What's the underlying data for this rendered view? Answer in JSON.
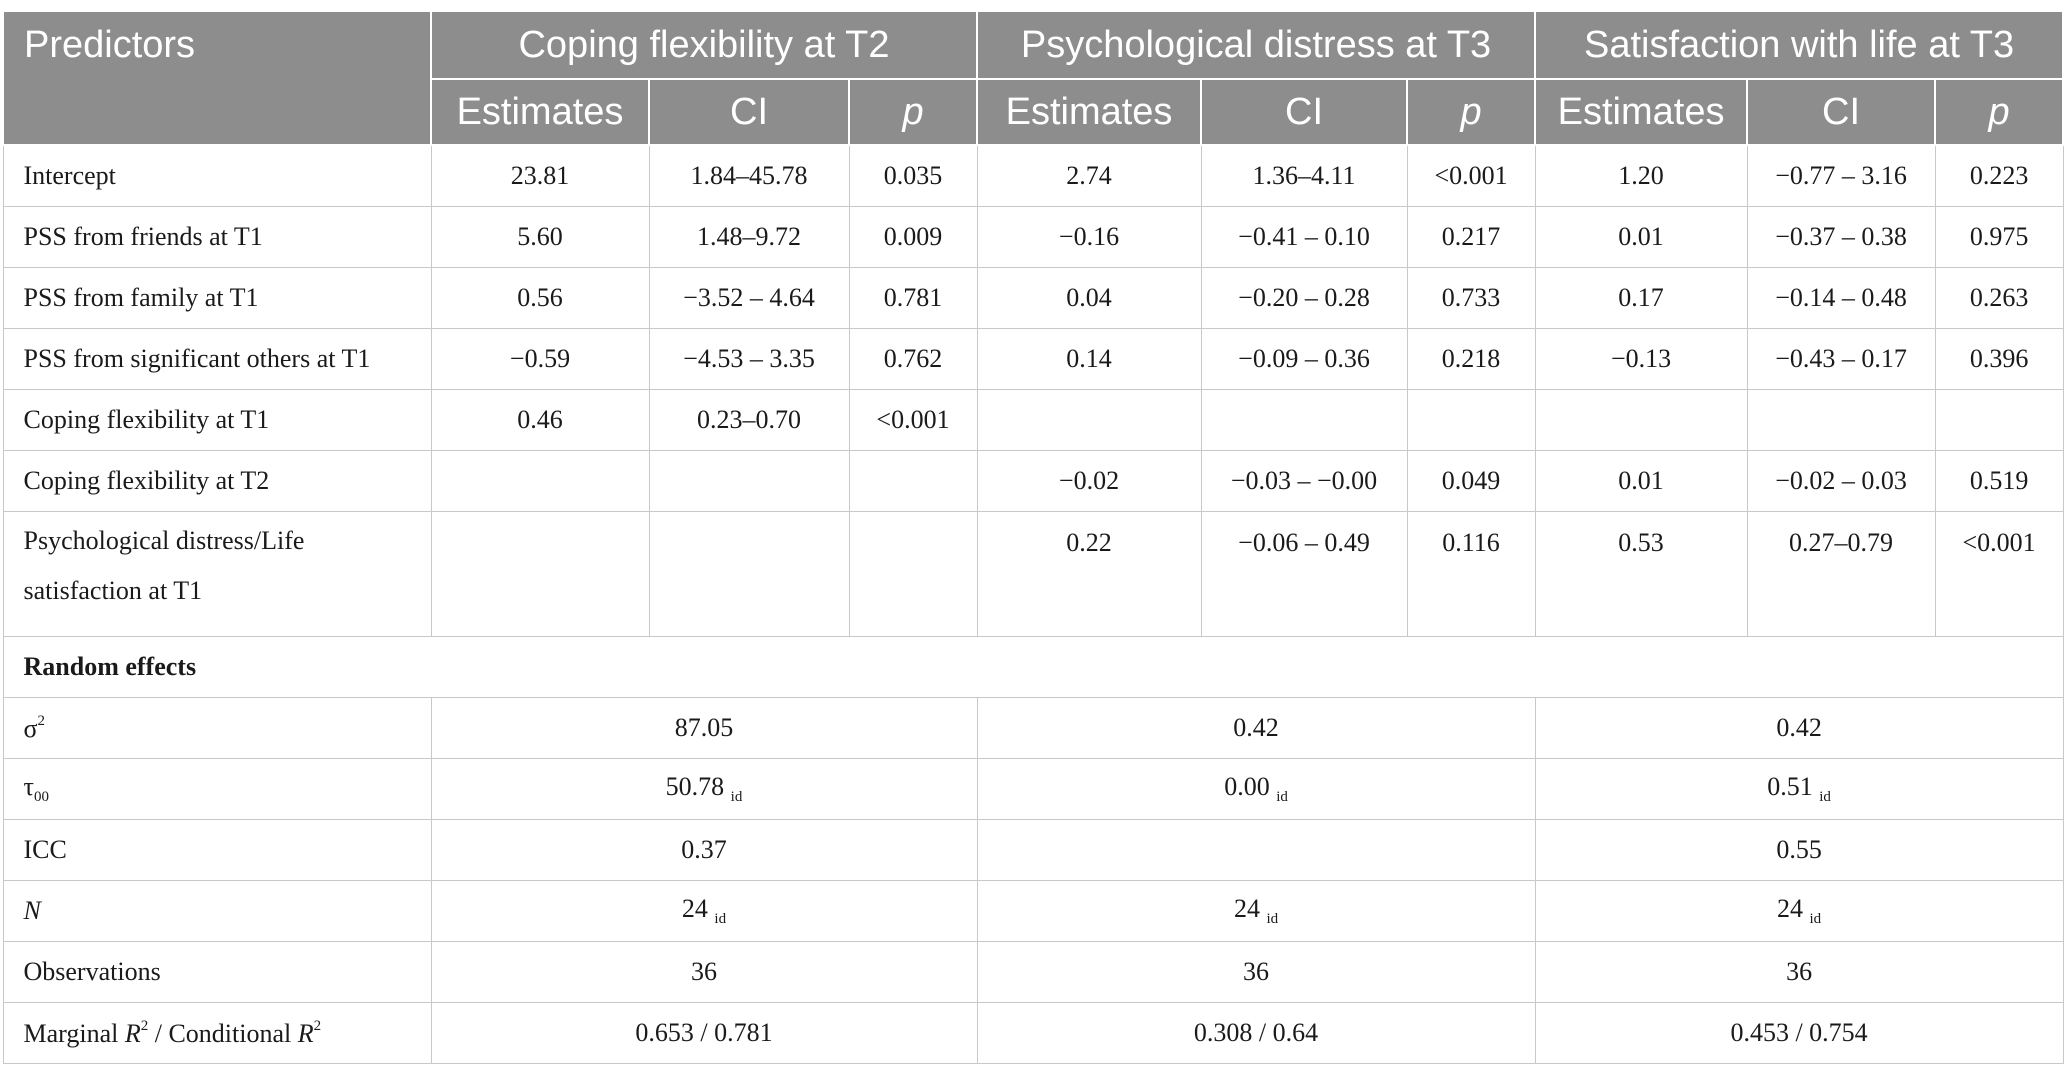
{
  "header": {
    "predictors": "Predictors",
    "groups": [
      "Coping flexibility at T2",
      "Psychological distress at T3",
      "Satisfaction with life at T3"
    ],
    "sub": {
      "estimates": "Estimates",
      "ci": "CI",
      "p": "p"
    }
  },
  "rows": [
    {
      "label": "Intercept",
      "cells": [
        "23.81",
        "1.84–45.78",
        "0.035",
        "2.74",
        "1.36–4.11",
        "<0.001",
        "1.20",
        "−0.77 – 3.16",
        "0.223"
      ]
    },
    {
      "label": "PSS from friends at T1",
      "cells": [
        "5.60",
        "1.48–9.72",
        "0.009",
        "−0.16",
        "−0.41 – 0.10",
        "0.217",
        "0.01",
        "−0.37 – 0.38",
        "0.975"
      ]
    },
    {
      "label": "PSS from family at T1",
      "cells": [
        "0.56",
        "−3.52 – 4.64",
        "0.781",
        "0.04",
        "−0.20 – 0.28",
        "0.733",
        "0.17",
        "−0.14 – 0.48",
        "0.263"
      ]
    },
    {
      "label": "PSS from significant others at T1",
      "cells": [
        "−0.59",
        "−4.53 – 3.35",
        "0.762",
        "0.14",
        "−0.09 – 0.36",
        "0.218",
        "−0.13",
        "−0.43 – 0.17",
        "0.396"
      ]
    },
    {
      "label": "Coping flexibility at T1",
      "cells": [
        "0.46",
        "0.23–0.70",
        "<0.001",
        "",
        "",
        "",
        "",
        "",
        ""
      ]
    },
    {
      "label": "Coping flexibility at T2",
      "cells": [
        "",
        "",
        "",
        "−0.02",
        "−0.03 – −0.00",
        "0.049",
        "0.01",
        "−0.02 – 0.03",
        "0.519"
      ]
    },
    {
      "label": "Psychological distress/Life satisfaction at T1",
      "cells": [
        "",
        "",
        "",
        "0.22",
        "−0.06 – 0.49",
        "0.116",
        "0.53",
        "0.27–0.79",
        "<0.001"
      ]
    }
  ],
  "random_effects": {
    "title": "Random effects",
    "sigma2": {
      "symbol": "σ",
      "sup": "2",
      "values": [
        "87.05",
        "0.42",
        "0.42"
      ]
    },
    "tau00": {
      "symbol": "τ",
      "sub": "00",
      "values": [
        "50.78",
        "0.00",
        "0.51"
      ],
      "suffix": "id"
    },
    "icc": {
      "label": "ICC",
      "values": [
        "0.37",
        "",
        "0.55"
      ]
    },
    "n": {
      "label": "N",
      "values": [
        "24",
        "24",
        "24"
      ],
      "suffix": "id"
    },
    "observations": {
      "label": "Observations",
      "values": [
        "36",
        "36",
        "36"
      ]
    },
    "r2": {
      "marginal": "Marginal R",
      "sep": " / ",
      "conditional": "Conditional R",
      "sup": "2",
      "values": [
        "0.653 / 0.781",
        "0.308 / 0.64",
        "0.453 / 0.754"
      ]
    }
  }
}
